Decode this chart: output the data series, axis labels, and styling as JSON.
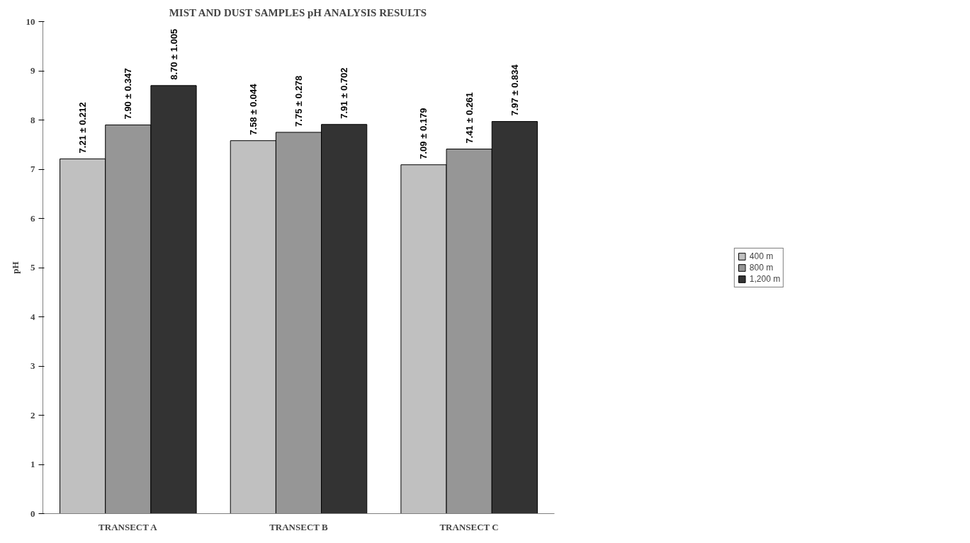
{
  "chart_data": {
    "type": "bar",
    "title": "MIST AND DUST SAMPLES pH ANALYSIS RESULTS",
    "ylabel": "pH",
    "categories": [
      "TRANSECT A",
      "TRANSECT B",
      "TRANSECT C"
    ],
    "series": [
      {
        "name": "400 m",
        "color": "#c0c0c0",
        "values": [
          7.21,
          7.58,
          7.09
        ],
        "value_labels": [
          "7.21 ± 0.212",
          "7.58 ± 0.044",
          "7.09 ± 0.179"
        ]
      },
      {
        "name": "800 m",
        "color": "#969696",
        "values": [
          7.9,
          7.75,
          7.41
        ],
        "value_labels": [
          "7.90 ± 0.347",
          "7.75 ± 0.278",
          "7.41 ± 0.261"
        ]
      },
      {
        "name": "1,200 m",
        "color": "#333333",
        "values": [
          8.7,
          7.91,
          7.97
        ],
        "value_labels": [
          "8.70 ± 1.005",
          "7.91 ± 0.702",
          "7.97 ± 0.834"
        ]
      }
    ],
    "ylim": [
      0,
      10
    ],
    "yticks": [
      0,
      1,
      2,
      3,
      4,
      5,
      6,
      7,
      8,
      9,
      10
    ],
    "grid": false,
    "legend": "right"
  }
}
